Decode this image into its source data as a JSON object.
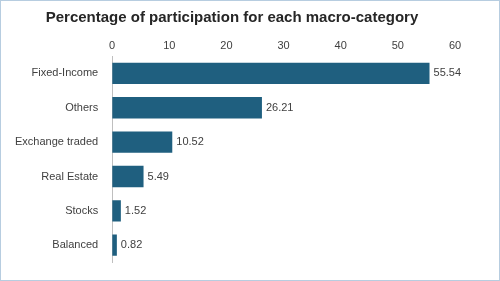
{
  "chart_data": {
    "type": "bar",
    "title": "Percentage of participation for each macro-category",
    "orientation": "horizontal",
    "categories": [
      "Fixed-Income",
      "Others",
      "Exchange traded",
      "Real Estate",
      "Stocks",
      "Balanced"
    ],
    "values": [
      55.54,
      26.21,
      10.52,
      5.49,
      1.52,
      0.82
    ],
    "color": "#1f5f7f",
    "xlim": [
      0,
      60
    ],
    "xticks": [
      0,
      10,
      20,
      30,
      40,
      50,
      60
    ],
    "grid": false,
    "data_labels": true
  }
}
